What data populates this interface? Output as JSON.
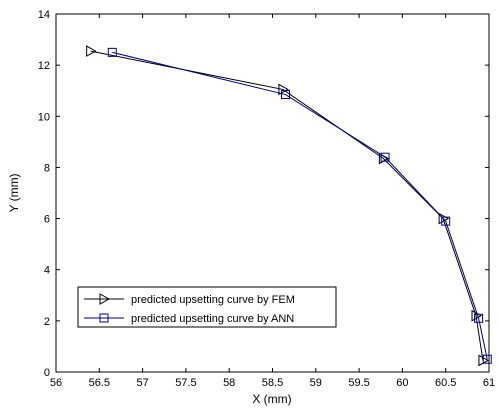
{
  "chart_data": {
    "type": "line",
    "title": "",
    "xlabel": "X (mm)",
    "ylabel": "Y (mm)",
    "xlim": [
      56,
      61
    ],
    "ylim": [
      0,
      14
    ],
    "xticks": [
      56,
      56.5,
      57,
      57.5,
      58,
      58.5,
      59,
      59.5,
      60,
      60.5,
      61
    ],
    "xtick_labels": [
      "56",
      "56.5",
      "57",
      "57.5",
      "58",
      "58.5",
      "59",
      "59.5",
      "60",
      "60.5",
      "61"
    ],
    "yticks": [
      0,
      2,
      4,
      6,
      8,
      10,
      12,
      14
    ],
    "ytick_labels": [
      "0",
      "2",
      "4",
      "6",
      "8",
      "10",
      "12",
      "14"
    ],
    "grid": false,
    "legend_position": "bottom-left",
    "series": [
      {
        "name": "predicted upsetting curve by FEM",
        "marker": "triangle-right",
        "color": "#000000",
        "x": [
          56.4,
          58.62,
          59.78,
          60.47,
          60.85,
          60.93
        ],
        "y": [
          12.55,
          11.05,
          8.35,
          6.0,
          2.2,
          0.45
        ]
      },
      {
        "name": "predicted upsetting curve by ANN",
        "marker": "square",
        "color": "#000080",
        "x": [
          56.65,
          58.65,
          59.8,
          60.5,
          60.88,
          60.98
        ],
        "y": [
          12.5,
          10.85,
          8.4,
          5.9,
          2.1,
          0.5
        ]
      }
    ]
  }
}
